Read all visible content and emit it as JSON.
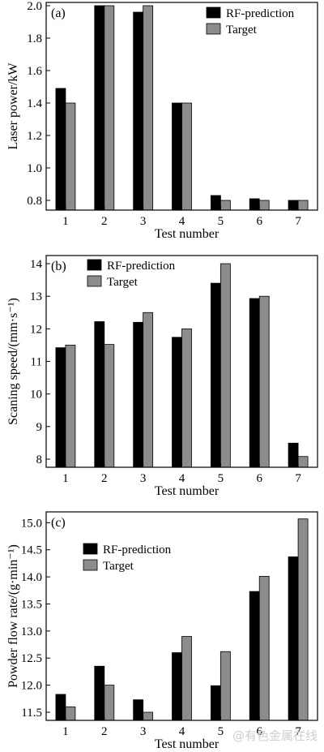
{
  "chart_data": [
    {
      "type": "bar",
      "panel_label": "(a)",
      "xlabel": "Test number",
      "ylabel": "Laser power/kW",
      "categories": [
        "1",
        "2",
        "3",
        "4",
        "5",
        "6",
        "7"
      ],
      "ylim": [
        0.74,
        2.02
      ],
      "yticks": [
        0.8,
        1.0,
        1.2,
        1.4,
        1.6,
        1.8,
        2.0
      ],
      "ytick_labels": [
        "0.8",
        "1.0",
        "1.2",
        "1.4",
        "1.6",
        "1.8",
        "2.0"
      ],
      "legend_position": "top-right",
      "grid": false,
      "series": [
        {
          "name": "RF-prediction",
          "color": "#000000",
          "values": [
            1.49,
            2.0,
            1.96,
            1.4,
            0.83,
            0.81,
            0.8
          ]
        },
        {
          "name": "Target",
          "color": "#8c8c8c",
          "values": [
            1.4,
            2.0,
            2.0,
            1.4,
            0.8,
            0.8,
            0.8
          ]
        }
      ]
    },
    {
      "type": "bar",
      "panel_label": "(b)",
      "xlabel": "Test number",
      "ylabel": "Scaning speed/(mm·s⁻¹)",
      "categories": [
        "1",
        "2",
        "3",
        "4",
        "5",
        "6",
        "7"
      ],
      "ylim": [
        7.75,
        14.25
      ],
      "yticks": [
        8,
        9,
        10,
        11,
        12,
        13,
        14
      ],
      "ytick_labels": [
        "8",
        "9",
        "10",
        "11",
        "12",
        "13",
        "14"
      ],
      "legend_position": "top-left",
      "grid": false,
      "series": [
        {
          "name": "RF-prediction",
          "color": "#000000",
          "values": [
            11.42,
            12.22,
            12.2,
            11.74,
            13.4,
            12.93,
            8.49
          ]
        },
        {
          "name": "Target",
          "color": "#8c8c8c",
          "values": [
            11.5,
            11.52,
            12.5,
            12.0,
            14.0,
            13.0,
            8.08
          ]
        }
      ]
    },
    {
      "type": "bar",
      "panel_label": "(c)",
      "xlabel": "Test number",
      "ylabel": "Powder flow rate/(g·min⁻¹)",
      "categories": [
        "1",
        "2",
        "3",
        "4",
        "5",
        "6",
        "7"
      ],
      "ylim": [
        11.35,
        15.2
      ],
      "yticks": [
        11.5,
        12.0,
        12.5,
        13.0,
        13.5,
        14.0,
        14.5,
        15.0
      ],
      "ytick_labels": [
        "11.5",
        "12.0",
        "12.5",
        "13.0",
        "13.5",
        "14.0",
        "14.5",
        "15.0"
      ],
      "legend_position": "top-left",
      "grid": false,
      "series": [
        {
          "name": "RF-prediction",
          "color": "#000000",
          "values": [
            11.83,
            12.35,
            11.73,
            12.6,
            11.99,
            13.73,
            14.37
          ]
        },
        {
          "name": "Target",
          "color": "#8c8c8c",
          "values": [
            11.6,
            12.0,
            11.5,
            12.9,
            12.62,
            14.01,
            15.07
          ]
        }
      ]
    }
  ],
  "watermark": "@有色金属在线"
}
